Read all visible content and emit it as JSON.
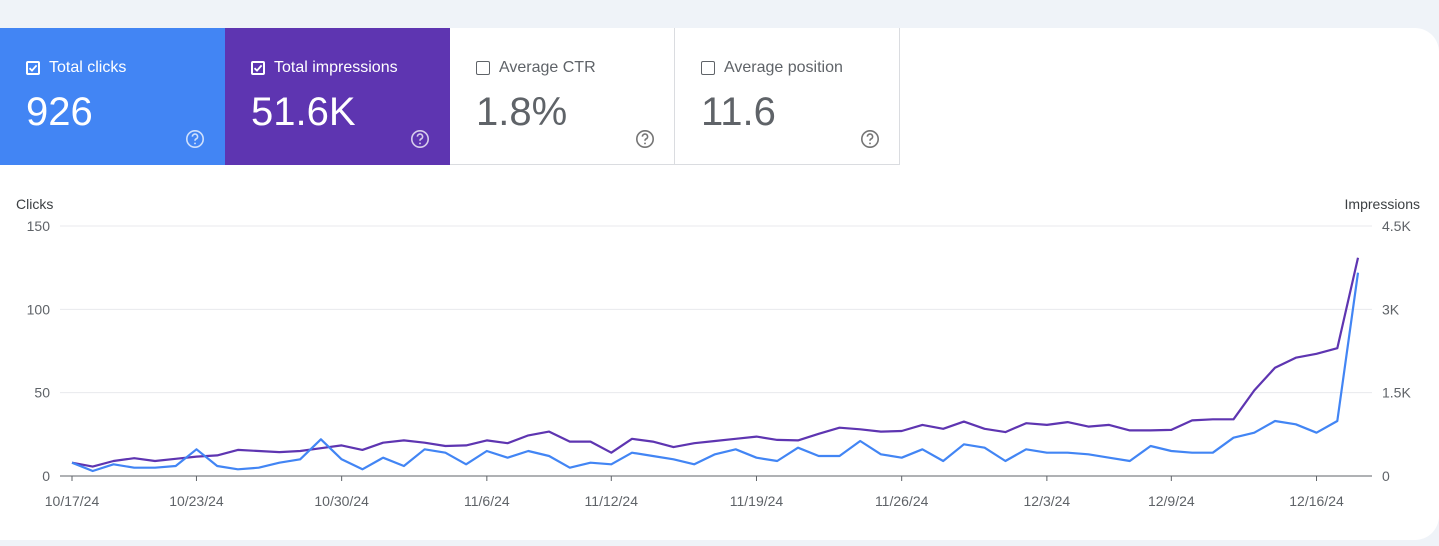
{
  "metrics": [
    {
      "label": "Total clicks",
      "value": "926",
      "checked": true,
      "color": "#4285f4"
    },
    {
      "label": "Total impressions",
      "value": "51.6K",
      "checked": true,
      "color": "#5e35b1"
    },
    {
      "label": "Average CTR",
      "value": "1.8%",
      "checked": false
    },
    {
      "label": "Average position",
      "value": "11.6",
      "checked": false
    }
  ],
  "icons": {
    "checkbox": "checkbox-icon",
    "help": "help-circle-icon"
  },
  "chart_data": {
    "type": "line",
    "left_axis_title": "Clicks",
    "right_axis_title": "Impressions",
    "left_ticks": [
      "150",
      "100",
      "50",
      "0"
    ],
    "right_ticks": [
      "4.5K",
      "3K",
      "1.5K",
      "0"
    ],
    "ylim_left": [
      0,
      150
    ],
    "ylim_right": [
      0,
      4500
    ],
    "x_tick_labels": [
      "10/17/24",
      "10/23/24",
      "10/30/24",
      "11/6/24",
      "11/12/24",
      "11/19/24",
      "11/26/24",
      "12/3/24",
      "12/9/24",
      "12/16/24"
    ],
    "x_tick_index": [
      0,
      6,
      13,
      20,
      26,
      33,
      40,
      47,
      53,
      60
    ],
    "series": [
      {
        "name": "Total clicks",
        "axis": "left",
        "color": "#4285f4",
        "values": [
          8,
          3,
          7,
          5,
          5,
          6,
          16,
          6,
          4,
          5,
          8,
          10,
          22,
          10,
          4,
          11,
          6,
          16,
          14,
          7,
          15,
          11,
          15,
          12,
          5,
          8,
          7,
          14,
          12,
          10,
          7,
          13,
          16,
          11,
          9,
          17,
          12,
          12,
          21,
          13,
          11,
          16,
          9,
          19,
          17,
          9,
          16,
          14,
          14,
          13,
          11,
          9,
          18,
          15,
          14,
          14,
          23,
          26,
          33,
          31,
          26,
          33,
          122
        ]
      },
      {
        "name": "Total impressions",
        "axis": "right",
        "color": "#5e35b1",
        "values": [
          240,
          170,
          270,
          320,
          270,
          310,
          350,
          370,
          470,
          450,
          430,
          450,
          500,
          550,
          470,
          600,
          640,
          600,
          540,
          550,
          640,
          590,
          730,
          800,
          620,
          620,
          420,
          670,
          620,
          520,
          590,
          630,
          670,
          710,
          650,
          640,
          760,
          870,
          840,
          800,
          810,
          920,
          850,
          980,
          850,
          790,
          950,
          920,
          970,
          890,
          920,
          820,
          820,
          830,
          1000,
          1020,
          1020,
          1540,
          1950,
          2130,
          2200,
          2300,
          3930
        ]
      }
    ]
  }
}
